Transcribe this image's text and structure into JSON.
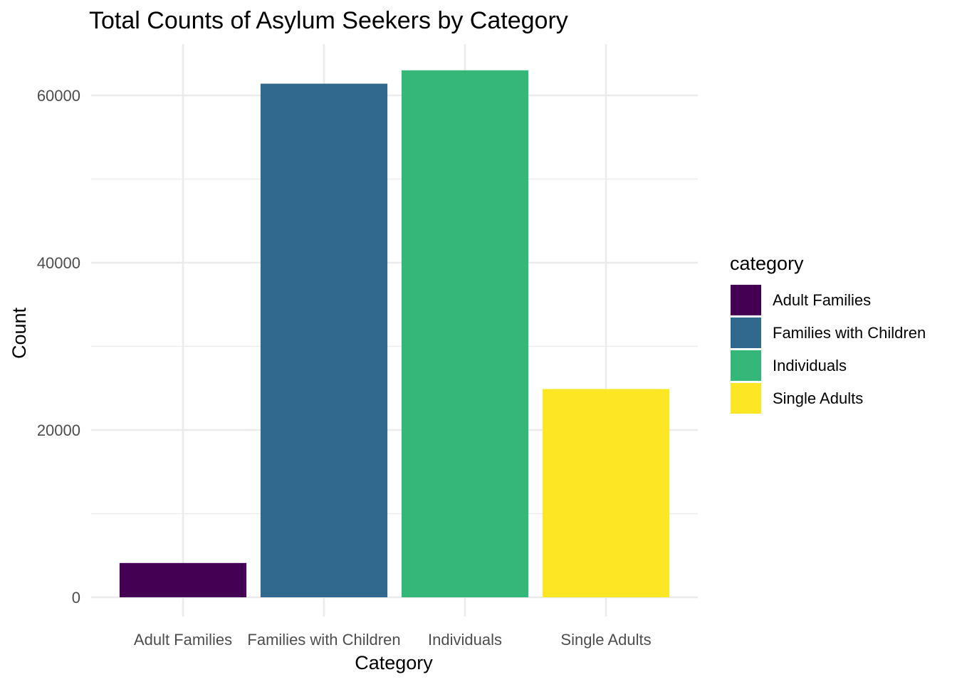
{
  "chart_data": {
    "type": "bar",
    "title": "Total Counts of Asylum Seekers by Category",
    "xlabel": "Category",
    "ylabel": "Count",
    "categories": [
      "Adult Families",
      "Families with Children",
      "Individuals",
      "Single Adults"
    ],
    "values": [
      4100,
      61400,
      63000,
      24900
    ],
    "colors": [
      "#440154",
      "#31688E",
      "#35B779",
      "#FDE725"
    ],
    "ylim": [
      0,
      66000
    ],
    "yticks": [
      0,
      20000,
      40000,
      60000
    ],
    "grid": true,
    "legend": {
      "title": "category",
      "position": "right",
      "entries": [
        "Adult Families",
        "Families with Children",
        "Individuals",
        "Single Adults"
      ]
    }
  }
}
